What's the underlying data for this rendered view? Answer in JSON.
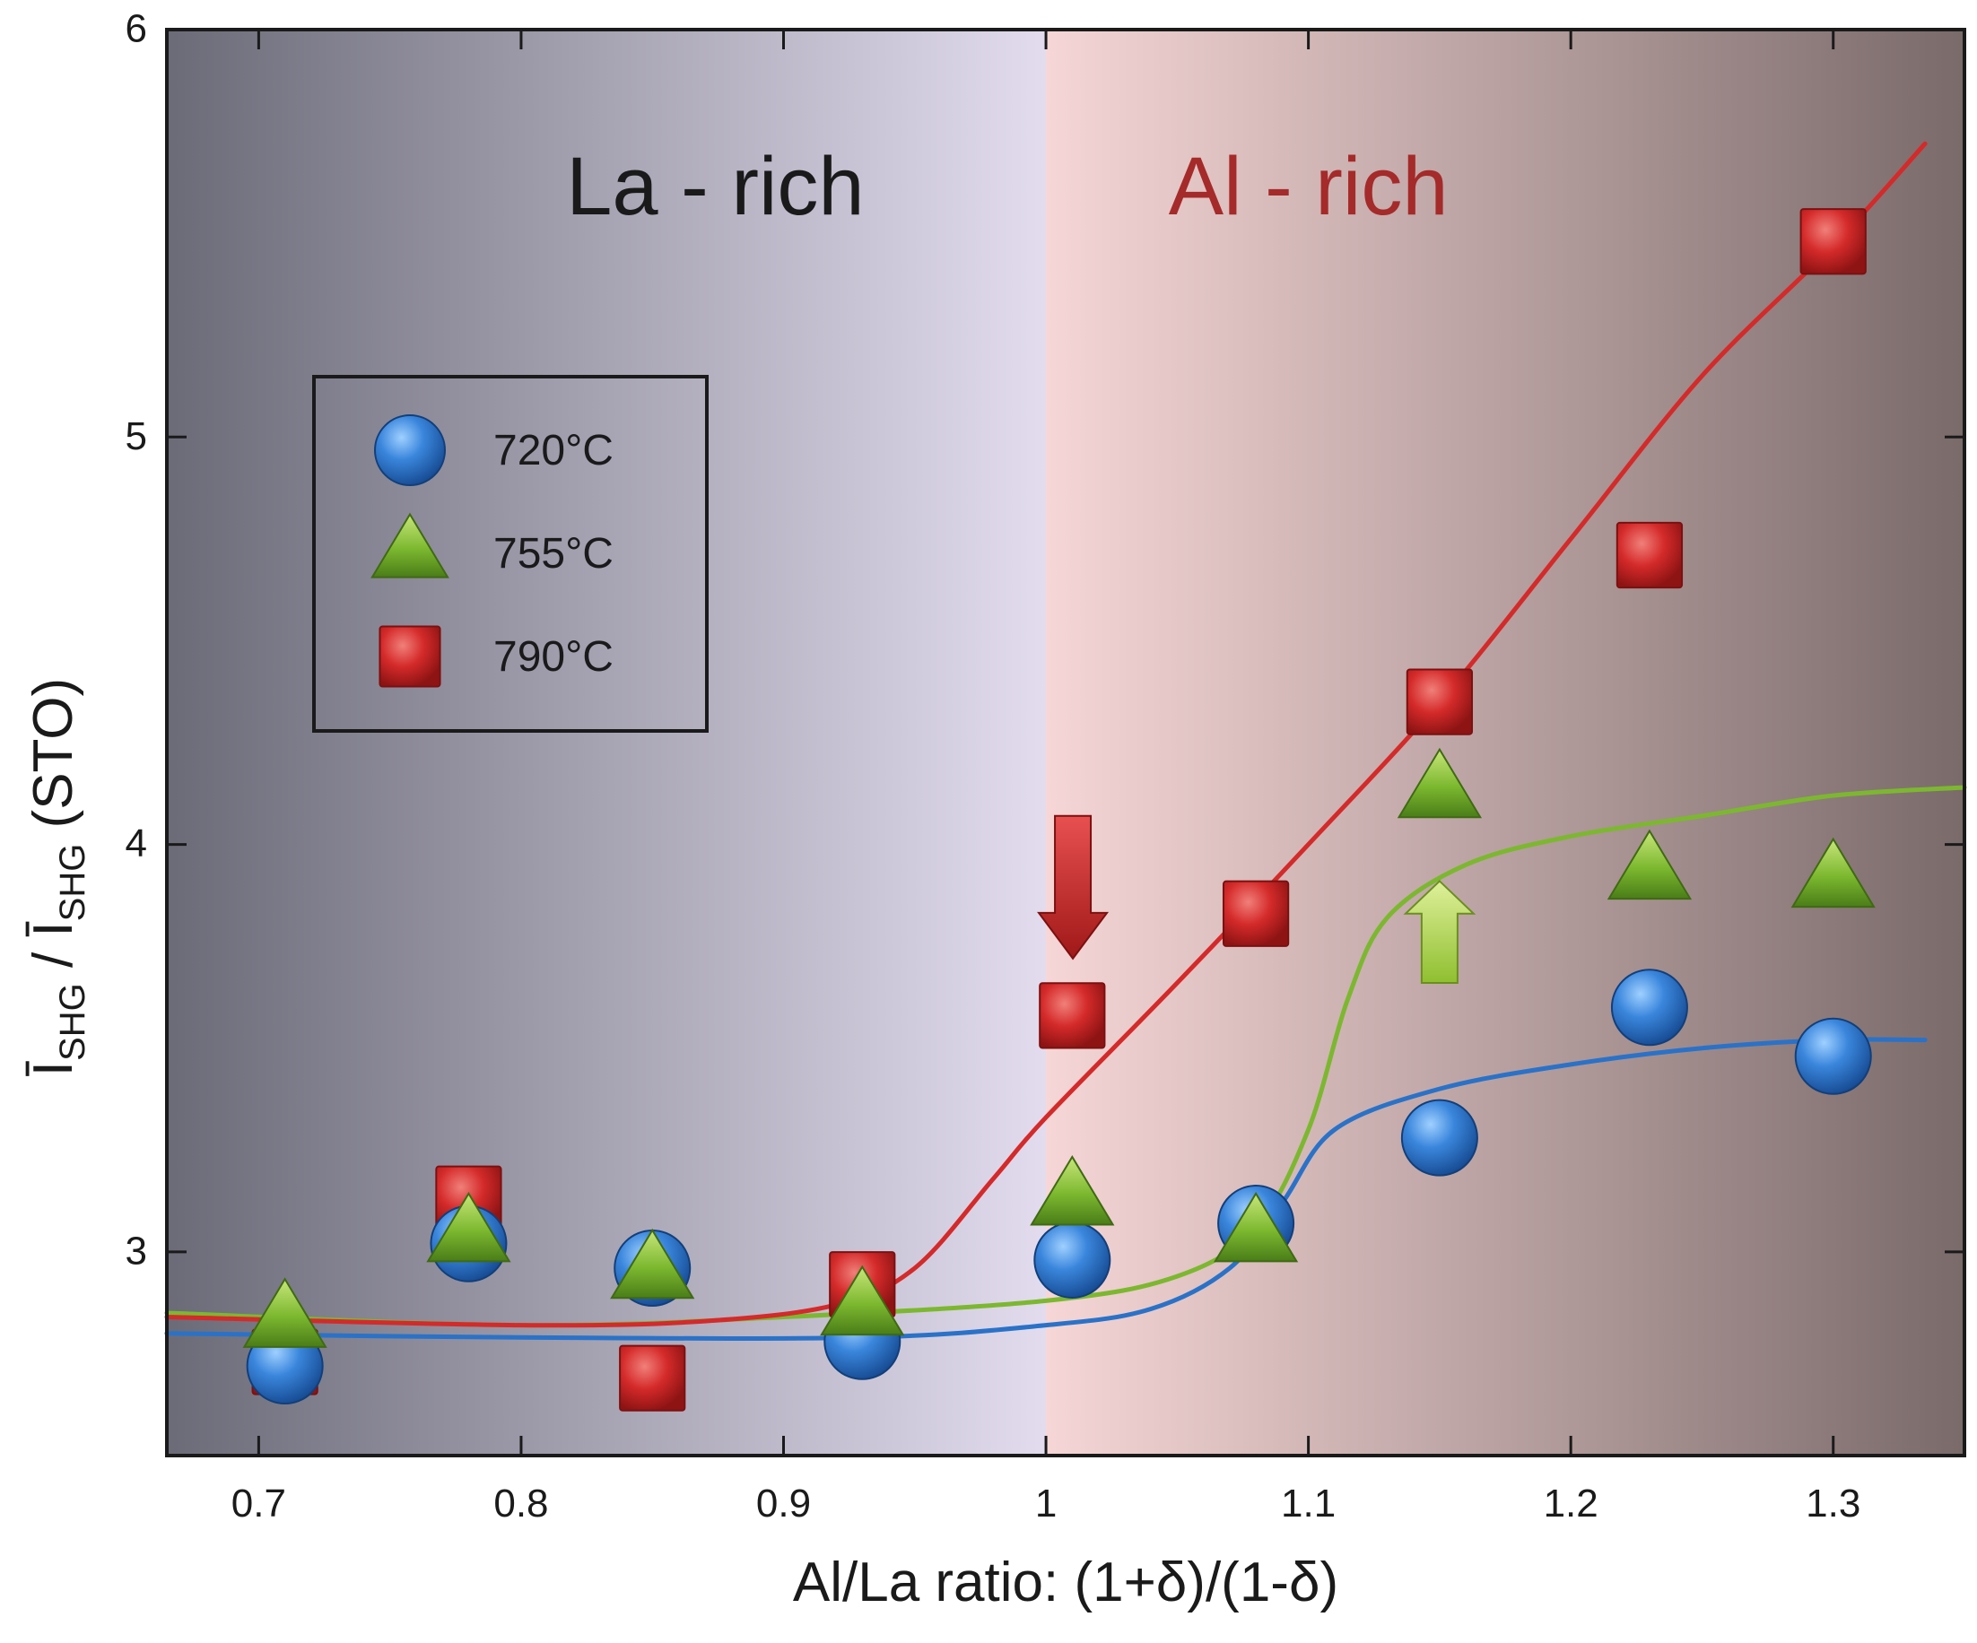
{
  "chart_data": {
    "type": "scatter",
    "title": "",
    "xlabel": "Al/La ratio: (1+δ)/(1-δ)",
    "ylabel": {
      "symbol": "Ī",
      "sub": "SHG",
      "separator": " / ",
      "suffix": "(STO)"
    },
    "xlim": [
      0.665,
      1.35
    ],
    "ylim": [
      2.5,
      6.0
    ],
    "x_ticks": [
      0.7,
      0.8,
      0.9,
      1.0,
      1.1,
      1.2,
      1.3
    ],
    "x_tick_labels": [
      "0.7",
      "0.8",
      "0.9",
      "1",
      "1.1",
      "1.2",
      "1.3"
    ],
    "y_ticks": [
      3,
      4,
      5,
      6
    ],
    "y_tick_labels": [
      "3",
      "4",
      "5",
      "6"
    ],
    "regions": [
      {
        "name": "la-rich",
        "label": "La - rich",
        "x_range": [
          0.665,
          1.0
        ],
        "color_edge": "#6b6b78",
        "color_center": "#e2dcee",
        "label_color": "#1a1a1a",
        "label_x": 0.874,
        "label_y": 5.6
      },
      {
        "name": "al-rich",
        "label": "Al - rich",
        "x_range": [
          1.0,
          1.35
        ],
        "color_edge": "#7a6a6a",
        "color_center": "#f6d6d6",
        "label_color": "#a52a2a",
        "label_x": 1.1,
        "label_y": 5.6
      }
    ],
    "legend": {
      "position": "upper-left",
      "entries": [
        {
          "label": "720°C",
          "marker": "circle",
          "color": "#2a72c8"
        },
        {
          "label": "755°C",
          "marker": "triangle",
          "color": "#7cb82f"
        },
        {
          "label": "790°C",
          "marker": "square",
          "color": "#d42a2a"
        }
      ]
    },
    "series": [
      {
        "name": "720°C",
        "marker": "circle",
        "color": "#2a72c8",
        "points": [
          [
            0.71,
            2.72
          ],
          [
            0.78,
            3.02
          ],
          [
            0.85,
            2.96
          ],
          [
            0.93,
            2.78
          ],
          [
            1.01,
            2.98
          ],
          [
            1.08,
            3.07
          ],
          [
            1.15,
            3.28
          ],
          [
            1.23,
            3.6
          ],
          [
            1.3,
            3.48
          ]
        ],
        "fit": [
          [
            0.665,
            2.8
          ],
          [
            0.8,
            2.79
          ],
          [
            0.93,
            2.79
          ],
          [
            1.0,
            2.82
          ],
          [
            1.04,
            2.86
          ],
          [
            1.07,
            2.96
          ],
          [
            1.09,
            3.12
          ],
          [
            1.11,
            3.3
          ],
          [
            1.15,
            3.4
          ],
          [
            1.2,
            3.46
          ],
          [
            1.25,
            3.5
          ],
          [
            1.3,
            3.52
          ],
          [
            1.335,
            3.52
          ]
        ]
      },
      {
        "name": "755°C",
        "marker": "triangle",
        "color": "#7cb82f",
        "points": [
          [
            0.71,
            2.83
          ],
          [
            0.78,
            3.04
          ],
          [
            0.85,
            2.95
          ],
          [
            0.93,
            2.86
          ],
          [
            1.01,
            3.13
          ],
          [
            1.08,
            3.04
          ],
          [
            1.15,
            4.13
          ],
          [
            1.23,
            3.93
          ],
          [
            1.3,
            3.91
          ]
        ],
        "fit": [
          [
            0.665,
            2.85
          ],
          [
            0.8,
            2.82
          ],
          [
            0.9,
            2.84
          ],
          [
            1.0,
            2.88
          ],
          [
            1.05,
            2.94
          ],
          [
            1.08,
            3.06
          ],
          [
            1.1,
            3.3
          ],
          [
            1.115,
            3.62
          ],
          [
            1.13,
            3.82
          ],
          [
            1.16,
            3.95
          ],
          [
            1.2,
            4.02
          ],
          [
            1.25,
            4.07
          ],
          [
            1.3,
            4.12
          ],
          [
            1.35,
            4.14
          ]
        ]
      },
      {
        "name": "790°C",
        "marker": "square",
        "color": "#d42a2a",
        "points": [
          [
            0.71,
            2.73
          ],
          [
            0.78,
            3.13
          ],
          [
            0.85,
            2.69
          ],
          [
            0.93,
            2.92
          ],
          [
            1.01,
            3.58
          ],
          [
            1.08,
            3.83
          ],
          [
            1.15,
            4.35
          ],
          [
            1.23,
            4.71
          ],
          [
            1.3,
            5.48
          ]
        ],
        "fit": [
          [
            0.665,
            2.84
          ],
          [
            0.8,
            2.82
          ],
          [
            0.87,
            2.83
          ],
          [
            0.92,
            2.87
          ],
          [
            0.95,
            2.96
          ],
          [
            0.98,
            3.18
          ],
          [
            1.0,
            3.33
          ],
          [
            1.05,
            3.66
          ],
          [
            1.1,
            4.0
          ],
          [
            1.15,
            4.35
          ],
          [
            1.2,
            4.75
          ],
          [
            1.25,
            5.15
          ],
          [
            1.3,
            5.47
          ],
          [
            1.335,
            5.72
          ]
        ]
      }
    ],
    "annotations": [
      {
        "name": "red-down-arrow",
        "direction": "down",
        "color": "#d42a2a",
        "x": 1.0,
        "y_tail": 4.07,
        "y_head": 3.72
      },
      {
        "name": "green-up-arrow",
        "direction": "up",
        "color": "#a8d048",
        "x": 1.15,
        "y_tail": 3.66,
        "y_head": 3.91
      }
    ]
  }
}
